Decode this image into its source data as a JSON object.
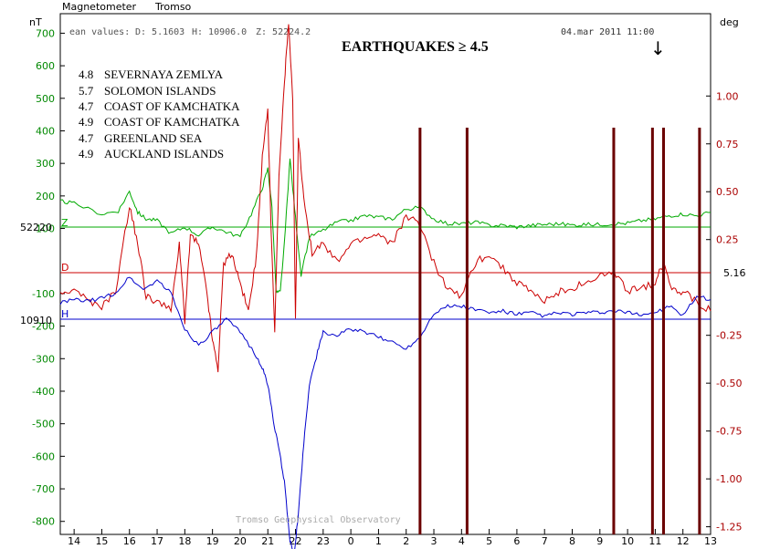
{
  "header": {
    "instrument": "Magnetometer",
    "station": "Tromso",
    "mean_label": "ean values:",
    "mean_d": "D: 5.1603",
    "mean_h": "H: 10906.0",
    "mean_z": "Z: 52224.2",
    "timestamp": "04.mar 2011 11:00",
    "arrow": "↓"
  },
  "title": "EARTHQUAKES ≥ 4.5",
  "footer": "Tromso Geophysical Observatory",
  "quakes": [
    {
      "magnitude": "4.8",
      "region": "SEVERNAYA ZEMLYA"
    },
    {
      "magnitude": "5.7",
      "region": "SOLOMON ISLANDS"
    },
    {
      "magnitude": "4.7",
      "region": "COAST OF KAMCHATKA"
    },
    {
      "magnitude": "4.9",
      "region": "COAST OF KAMCHATKA"
    },
    {
      "magnitude": "4.7",
      "region": "GREENLAND SEA"
    },
    {
      "magnitude": "4.9",
      "region": "AUCKLAND ISLANDS"
    }
  ],
  "chart_data": {
    "type": "line",
    "left_axis": {
      "unit": "nT",
      "ticks": [
        "700",
        "600",
        "500",
        "400",
        "300",
        "200",
        "100",
        "-100",
        "-200",
        "-300",
        "-400",
        "-500",
        "-600",
        "-700",
        "-800"
      ],
      "baselines": [
        "52220",
        "10910"
      ],
      "range": [
        -840,
        760
      ]
    },
    "right_axis": {
      "unit": "deg",
      "ticks": [
        "1.00",
        "0.75",
        "0.50",
        "0.25",
        "-0.25",
        "-0.50",
        "-0.75",
        "-1.00",
        "-1.25"
      ],
      "baseline": "5.16",
      "range": [
        -1.29,
        1.43
      ]
    },
    "x_axis": {
      "tick_labels": [
        "14",
        "15",
        "16",
        "17",
        "18",
        "19",
        "20",
        "21",
        "22",
        "23",
        "0",
        "1",
        "2",
        "3",
        "4",
        "5",
        "6",
        "7",
        "8",
        "9",
        "10",
        "11",
        "12",
        "13"
      ],
      "range": [
        13.5,
        37.0
      ]
    },
    "series_labels": [
      "Z",
      "D",
      "H"
    ],
    "colors": {
      "Z": "#00aa00",
      "D": "#cc0000",
      "H": "#0000cc",
      "quake": "#6b0000",
      "left_ticks": "#008800",
      "right_ticks": "#aa0000"
    },
    "quake_times": [
      26.5,
      28.2,
      33.5,
      34.9,
      35.3,
      36.6
    ],
    "series": [
      {
        "key": "Z",
        "baseline": 0,
        "scale": "nT",
        "points": [
          [
            13.5,
            80
          ],
          [
            14,
            72
          ],
          [
            15,
            40
          ],
          [
            15.6,
            50
          ],
          [
            16.0,
            110
          ],
          [
            16.3,
            45
          ],
          [
            16.6,
            25
          ],
          [
            17,
            20
          ],
          [
            17.5,
            -20
          ],
          [
            18,
            0
          ],
          [
            18.5,
            -25
          ],
          [
            19,
            0
          ],
          [
            19.5,
            -15
          ],
          [
            20,
            -30
          ],
          [
            20.4,
            40
          ],
          [
            20.8,
            120
          ],
          [
            21.0,
            180
          ],
          [
            21.15,
            60
          ],
          [
            21.3,
            -200
          ],
          [
            21.45,
            -200
          ],
          [
            21.6,
            -50
          ],
          [
            21.8,
            210
          ],
          [
            22.0,
            30
          ],
          [
            22.2,
            -150
          ],
          [
            22.5,
            -30
          ],
          [
            23,
            -10
          ],
          [
            23.5,
            15
          ],
          [
            24,
            20
          ],
          [
            24.5,
            35
          ],
          [
            25,
            30
          ],
          [
            25.5,
            25
          ],
          [
            26,
            55
          ],
          [
            26.5,
            60
          ],
          [
            27,
            25
          ],
          [
            27.5,
            10
          ],
          [
            28,
            10
          ],
          [
            28.5,
            15
          ],
          [
            29,
            5
          ],
          [
            29.5,
            5
          ],
          [
            30,
            0
          ],
          [
            30.5,
            5
          ],
          [
            31,
            8
          ],
          [
            31.5,
            10
          ],
          [
            32,
            6
          ],
          [
            32.5,
            8
          ],
          [
            33,
            8
          ],
          [
            33.5,
            10
          ],
          [
            34,
            12
          ],
          [
            34.5,
            20
          ],
          [
            35,
            25
          ],
          [
            35.5,
            35
          ],
          [
            36,
            40
          ],
          [
            36.5,
            35
          ],
          [
            37,
            45
          ]
        ]
      },
      {
        "key": "D",
        "baseline": 0,
        "scale": "deg",
        "points": [
          [
            13.5,
            -0.12
          ],
          [
            14,
            -0.08
          ],
          [
            14.5,
            -0.15
          ],
          [
            15,
            -0.18
          ],
          [
            15.5,
            -0.1
          ],
          [
            16,
            0.35
          ],
          [
            16.3,
            0.15
          ],
          [
            16.6,
            -0.12
          ],
          [
            17,
            -0.15
          ],
          [
            17.5,
            -0.2
          ],
          [
            17.8,
            0.15
          ],
          [
            18.0,
            -0.25
          ],
          [
            18.2,
            0.2
          ],
          [
            18.5,
            0.15
          ],
          [
            18.8,
            -0.1
          ],
          [
            19.0,
            -0.35
          ],
          [
            19.2,
            -0.5
          ],
          [
            19.4,
            0.05
          ],
          [
            19.7,
            0.1
          ],
          [
            20,
            -0.05
          ],
          [
            20.3,
            -0.2
          ],
          [
            20.6,
            0.1
          ],
          [
            20.8,
            0.6
          ],
          [
            21.0,
            0.85
          ],
          [
            21.1,
            0.3
          ],
          [
            21.25,
            -0.3
          ],
          [
            21.4,
            0.5
          ],
          [
            21.6,
            1.0
          ],
          [
            21.75,
            1.3
          ],
          [
            21.9,
            0.9
          ],
          [
            22.0,
            -0.25
          ],
          [
            22.1,
            0.7
          ],
          [
            22.3,
            0.4
          ],
          [
            22.6,
            0.1
          ],
          [
            23,
            0.15
          ],
          [
            23.5,
            0.05
          ],
          [
            24,
            0.15
          ],
          [
            24.5,
            0.18
          ],
          [
            25,
            0.2
          ],
          [
            25.5,
            0.15
          ],
          [
            26,
            0.3
          ],
          [
            26.5,
            0.25
          ],
          [
            27,
            0.05
          ],
          [
            27.5,
            -0.08
          ],
          [
            28,
            -0.12
          ],
          [
            28.5,
            0.05
          ],
          [
            29,
            0.1
          ],
          [
            29.5,
            0.02
          ],
          [
            30,
            -0.05
          ],
          [
            30.5,
            -0.1
          ],
          [
            31,
            -0.15
          ],
          [
            31.5,
            -0.1
          ],
          [
            32,
            -0.08
          ],
          [
            32.5,
            -0.05
          ],
          [
            33,
            -0.02
          ],
          [
            33.5,
            0.0
          ],
          [
            34,
            -0.1
          ],
          [
            34.5,
            -0.08
          ],
          [
            35,
            -0.05
          ],
          [
            35.3,
            0.05
          ],
          [
            35.6,
            -0.08
          ],
          [
            36,
            -0.1
          ],
          [
            36.5,
            -0.15
          ],
          [
            37,
            -0.2
          ]
        ]
      },
      {
        "key": "H",
        "baseline": 0,
        "scale": "nT",
        "points": [
          [
            13.5,
            50
          ],
          [
            14,
            60
          ],
          [
            14.5,
            55
          ],
          [
            15,
            65
          ],
          [
            15.5,
            80
          ],
          [
            16,
            130
          ],
          [
            16.5,
            90
          ],
          [
            17,
            120
          ],
          [
            17.5,
            80
          ],
          [
            18,
            -30
          ],
          [
            18.5,
            -80
          ],
          [
            19,
            -40
          ],
          [
            19.5,
            0
          ],
          [
            20,
            -40
          ],
          [
            20.5,
            -100
          ],
          [
            20.8,
            -150
          ],
          [
            21.0,
            -200
          ],
          [
            21.2,
            -310
          ],
          [
            21.4,
            -400
          ],
          [
            21.6,
            -500
          ],
          [
            21.8,
            -680
          ],
          [
            21.95,
            -730
          ],
          [
            22.1,
            -600
          ],
          [
            22.3,
            -380
          ],
          [
            22.5,
            -200
          ],
          [
            22.8,
            -100
          ],
          [
            23,
            -40
          ],
          [
            23.5,
            -50
          ],
          [
            24,
            -30
          ],
          [
            24.5,
            -40
          ],
          [
            25,
            -55
          ],
          [
            25.5,
            -70
          ],
          [
            26,
            -90
          ],
          [
            26.5,
            -55
          ],
          [
            27,
            20
          ],
          [
            27.5,
            40
          ],
          [
            28,
            40
          ],
          [
            28.5,
            30
          ],
          [
            29,
            20
          ],
          [
            29.5,
            25
          ],
          [
            30,
            15
          ],
          [
            30.5,
            20
          ],
          [
            31,
            10
          ],
          [
            31.5,
            20
          ],
          [
            32,
            15
          ],
          [
            32.5,
            20
          ],
          [
            33,
            20
          ],
          [
            33.5,
            25
          ],
          [
            34,
            20
          ],
          [
            34.5,
            15
          ],
          [
            35,
            20
          ],
          [
            35.5,
            40
          ],
          [
            36,
            10
          ],
          [
            36.5,
            70
          ],
          [
            37,
            60
          ]
        ]
      }
    ]
  }
}
